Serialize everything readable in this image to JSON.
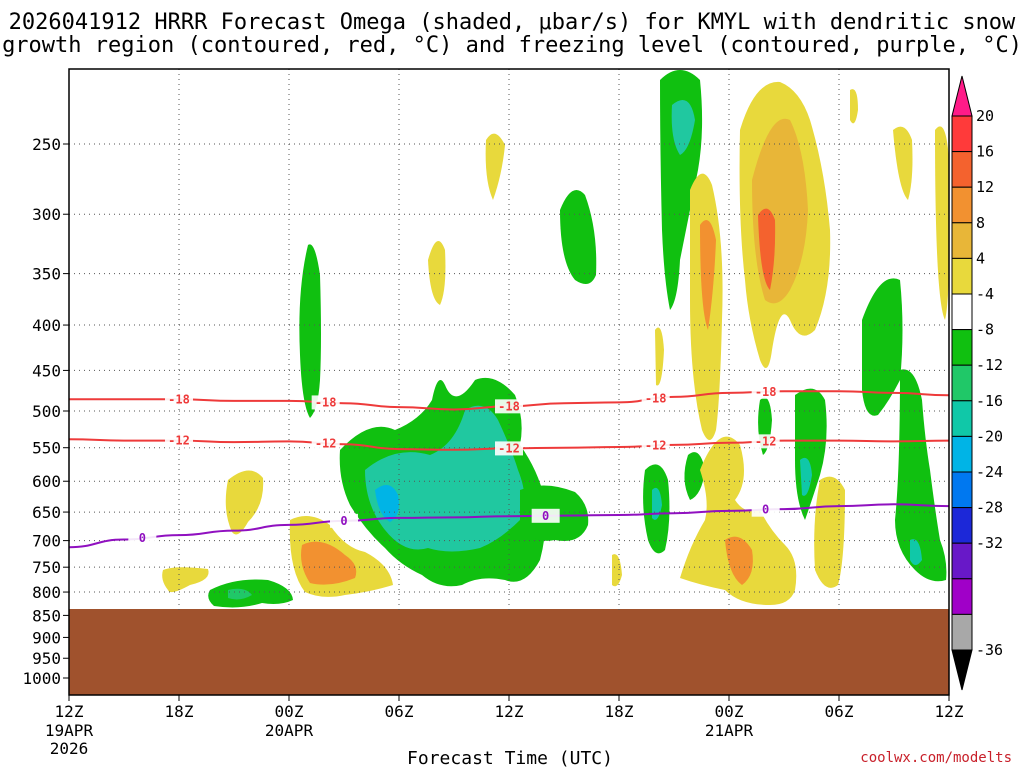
{
  "chart_data": {
    "type": "time-height cross section (filled contour)",
    "title_line1": "2026041912 HRRR Forecast Omega (shaded, μbar/s) for KMYL with dendritic snow",
    "title_line2": "growth region (contoured, red, °C) and freezing level (contoured, purple, °C)",
    "xlabel": "Forecast Time (UTC)",
    "ylabel": "",
    "credit": "coolwx.com/modelts",
    "y_scale": "log pressure (hPa), inverted",
    "y_ticks": [
      {
        "value": 250,
        "label": "250"
      },
      {
        "value": 300,
        "label": "300"
      },
      {
        "value": 350,
        "label": "350"
      },
      {
        "value": 400,
        "label": "400"
      },
      {
        "value": 450,
        "label": "450"
      },
      {
        "value": 500,
        "label": "500"
      },
      {
        "value": 550,
        "label": "550"
      },
      {
        "value": 600,
        "label": "600"
      },
      {
        "value": 650,
        "label": "650"
      },
      {
        "value": 700,
        "label": "700"
      },
      {
        "value": 750,
        "label": "750"
      },
      {
        "value": 800,
        "label": "800"
      },
      {
        "value": 850,
        "label": "850"
      },
      {
        "value": 900,
        "label": "900"
      },
      {
        "value": 950,
        "label": "950"
      },
      {
        "value": 1000,
        "label": "1000"
      }
    ],
    "x_range_hours": [
      0,
      48
    ],
    "x_ticks": [
      {
        "hour": 0,
        "label": "12Z",
        "date": "19APR",
        "year": "2026"
      },
      {
        "hour": 6,
        "label": "18Z",
        "date": "",
        "year": ""
      },
      {
        "hour": 12,
        "label": "00Z",
        "date": "20APR",
        "year": ""
      },
      {
        "hour": 18,
        "label": "06Z",
        "date": "",
        "year": ""
      },
      {
        "hour": 24,
        "label": "12Z",
        "date": "",
        "year": ""
      },
      {
        "hour": 30,
        "label": "18Z",
        "date": "",
        "year": ""
      },
      {
        "hour": 36,
        "label": "00Z",
        "date": "21APR",
        "year": ""
      },
      {
        "hour": 42,
        "label": "06Z",
        "date": "",
        "year": ""
      },
      {
        "hour": 48,
        "label": "12Z",
        "date": "",
        "year": ""
      }
    ],
    "colorbar": {
      "labels": [
        "20",
        "16",
        "12",
        "8",
        "4",
        "-4",
        "-8",
        "-12",
        "-16",
        "-20",
        "-24",
        "-28",
        "-32",
        "-36"
      ],
      "colors": [
        "#ff1b88",
        "#ff3a3a",
        "#f4622e",
        "#f29130",
        "#e8b638",
        "#e8d93c",
        "#ffffff",
        "#10c010",
        "#20c868",
        "#10c8a8",
        "#00b4e6",
        "#0078f0",
        "#1c28d8",
        "#6818c8",
        "#a000c8",
        "#a8a8a8",
        "#000000"
      ]
    },
    "ground": {
      "below_hPa": 845,
      "color": "#a0522d"
    },
    "contours": [
      {
        "name": "-18 °C isotherm",
        "color": "#ee3a3a",
        "label": "-18",
        "hours": [
          0,
          3,
          6,
          9,
          12,
          15,
          18,
          21,
          24,
          27,
          30,
          33,
          36,
          39,
          42,
          45,
          48
        ],
        "hPa": [
          485,
          485,
          485,
          487,
          487,
          490,
          495,
          498,
          494,
          490,
          489,
          482,
          477,
          475,
          475,
          477,
          480
        ]
      },
      {
        "name": "-12 °C isotherm",
        "color": "#ee3a3a",
        "label": "-12",
        "hours": [
          0,
          3,
          6,
          9,
          12,
          15,
          18,
          21,
          24,
          27,
          30,
          33,
          36,
          39,
          42,
          45,
          48
        ],
        "hPa": [
          538,
          540,
          540,
          542,
          541,
          545,
          552,
          553,
          551,
          550,
          549,
          546,
          543,
          540,
          540,
          541,
          540
        ]
      },
      {
        "name": "0 °C freezing level",
        "color": "#9010c0",
        "label": "0",
        "hours": [
          0,
          3,
          6,
          9,
          12,
          15,
          18,
          21,
          24,
          27,
          30,
          33,
          36,
          39,
          42,
          45,
          48
        ],
        "hPa": [
          712,
          698,
          690,
          682,
          672,
          665,
          660,
          659,
          657,
          656,
          655,
          652,
          648,
          645,
          640,
          637,
          640
        ]
      }
    ],
    "omega_regions": [
      {
        "center_hour": 4.5,
        "center_hPa": 760,
        "label": "4..8"
      },
      {
        "center_hour": 9,
        "center_hPa": 815,
        "label": "-4..-12"
      },
      {
        "center_hour": 12.5,
        "center_hPa": 720,
        "label": "4..12"
      },
      {
        "center_hour": 13,
        "center_hPa": 390,
        "label": "-4..-8"
      },
      {
        "center_hour": 20,
        "center_hPa": 620,
        "label": "-4..-16"
      },
      {
        "center_hour": 23,
        "center_hPa": 560,
        "label": "-4..-12"
      },
      {
        "center_hour": 26.5,
        "center_hPa": 320,
        "label": "-4..-8"
      },
      {
        "center_hour": 33,
        "center_hPa": 240,
        "label": "-4..-12"
      },
      {
        "center_hour": 36,
        "center_hPa": 290,
        "label": "4..16"
      },
      {
        "center_hour": 38,
        "center_hPa": 290,
        "label": "4..16"
      },
      {
        "center_hour": 36.5,
        "center_hPa": 720,
        "label": "4..16"
      },
      {
        "center_hour": 40,
        "center_hPa": 620,
        "label": "-4..-16"
      },
      {
        "center_hour": 45.5,
        "center_hPa": 480,
        "label": "-4..-8"
      }
    ]
  }
}
